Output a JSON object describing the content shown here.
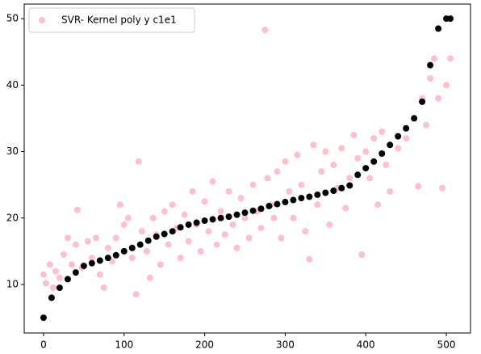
{
  "chart_data": {
    "type": "scatter",
    "series": [
      {
        "name": "SVR- Kernel poly y c1e1",
        "color": "#ffc0cb",
        "x": [
          0,
          3,
          8,
          12,
          15,
          20,
          25,
          30,
          35,
          40,
          42,
          48,
          55,
          60,
          65,
          70,
          75,
          80,
          85,
          90,
          95,
          100,
          105,
          110,
          115,
          118,
          122,
          128,
          132,
          136,
          140,
          145,
          150,
          155,
          160,
          165,
          170,
          175,
          180,
          185,
          190,
          195,
          200,
          205,
          210,
          215,
          220,
          225,
          230,
          235,
          240,
          245,
          250,
          255,
          260,
          265,
          270,
          275,
          278,
          282,
          286,
          290,
          295,
          300,
          305,
          310,
          315,
          320,
          325,
          330,
          335,
          340,
          345,
          350,
          355,
          360,
          365,
          370,
          375,
          380,
          385,
          390,
          395,
          400,
          405,
          410,
          415,
          420,
          425,
          430,
          440,
          450,
          460,
          465,
          470,
          475,
          480,
          485,
          490,
          495,
          500,
          505
        ],
        "values": [
          11.5,
          10.2,
          13,
          9.5,
          12,
          11,
          14.5,
          17,
          13,
          16,
          21.2,
          12.5,
          16.5,
          14,
          17,
          11.5,
          9.5,
          15.5,
          13.5,
          17,
          22,
          19,
          20,
          14,
          8.5,
          28.5,
          18,
          15,
          11,
          20,
          17.5,
          13,
          21,
          16,
          22,
          18.5,
          14,
          20.5,
          16.5,
          24,
          19,
          15,
          22.5,
          18,
          25.5,
          16,
          21,
          17.5,
          24,
          19,
          15.5,
          23,
          20,
          17,
          25,
          21,
          18.5,
          48.3,
          26,
          22,
          20,
          27,
          17,
          28.5,
          24,
          20,
          29.5,
          25,
          18,
          13.8,
          31,
          22,
          27,
          30,
          19,
          28,
          24.5,
          30.5,
          21.5,
          26,
          32.5,
          29,
          14.5,
          30,
          26,
          32,
          22,
          33,
          28,
          24,
          30.5,
          32,
          35,
          24.8,
          38,
          34,
          41,
          44,
          38,
          24.5,
          40,
          44
        ]
      },
      {
        "color": "#000000",
        "x": [
          0,
          10,
          20,
          30,
          40,
          50,
          60,
          70,
          80,
          90,
          100,
          110,
          120,
          130,
          140,
          150,
          160,
          170,
          180,
          190,
          200,
          210,
          220,
          230,
          240,
          250,
          260,
          270,
          280,
          290,
          300,
          310,
          320,
          330,
          340,
          350,
          360,
          370,
          380,
          390,
          400,
          410,
          420,
          430,
          440,
          450,
          460,
          470,
          480,
          490,
          500,
          505
        ],
        "values": [
          5,
          8,
          9.5,
          10.8,
          11.8,
          12.8,
          13.2,
          13.6,
          14,
          14.4,
          15,
          15.5,
          16,
          16.6,
          17.2,
          17.6,
          18,
          18.6,
          19,
          19.3,
          19.6,
          19.8,
          20,
          20.2,
          20.5,
          20.8,
          21.1,
          21.4,
          21.8,
          22.1,
          22.4,
          22.7,
          23,
          23.2,
          23.5,
          23.8,
          24.1,
          24.5,
          24.9,
          26.5,
          27.5,
          28.5,
          29.7,
          31,
          32.3,
          33.5,
          35,
          37.5,
          43,
          48.5,
          50,
          50
        ]
      }
    ],
    "xlim": [
      -24,
      530
    ],
    "ylim": [
      2.7,
      52.2
    ],
    "xticks": [
      0,
      100,
      200,
      300,
      400,
      500
    ],
    "yticks": [
      10,
      20,
      30,
      40,
      50
    ],
    "legend": "upper left",
    "grid": false
  }
}
